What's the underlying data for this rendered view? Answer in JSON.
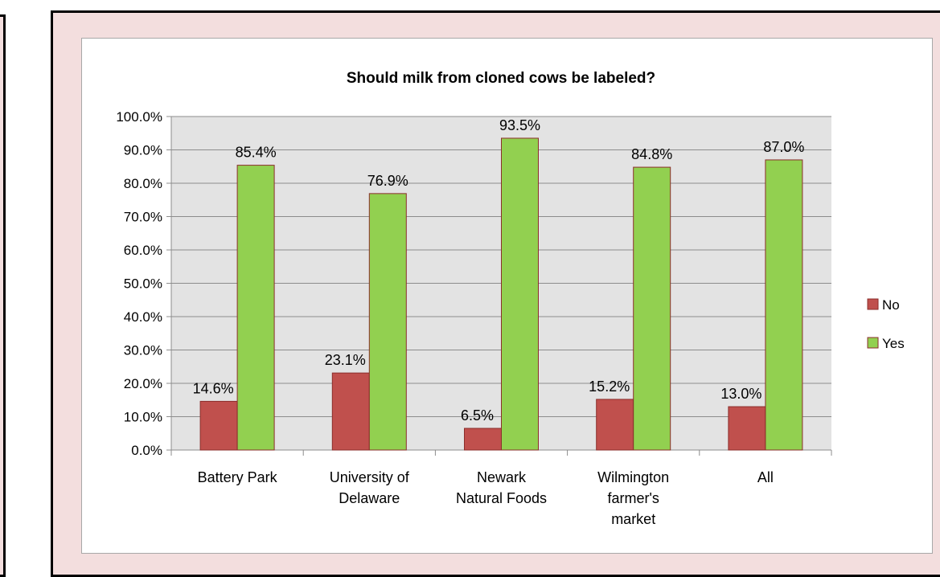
{
  "chart_data": {
    "type": "bar",
    "title": "Should milk from cloned cows be labeled?",
    "categories": [
      [
        "Battery Park"
      ],
      [
        "University of",
        "Delaware"
      ],
      [
        "Newark",
        "Natural Foods"
      ],
      [
        "Wilmington",
        "farmer's",
        "market"
      ],
      [
        "All"
      ]
    ],
    "series": [
      {
        "name": "No",
        "values": [
          14.6,
          23.1,
          6.5,
          15.2,
          13.0
        ],
        "labels": [
          "14.6%",
          "23.1%",
          "6.5%",
          "15.2%",
          "13.0%"
        ],
        "color": "#c0504d"
      },
      {
        "name": "Yes",
        "values": [
          85.4,
          76.9,
          93.5,
          84.8,
          87.0
        ],
        "labels": [
          "85.4%",
          "76.9%",
          "93.5%",
          "84.8%",
          "87.0%"
        ],
        "color": "#92d050"
      }
    ],
    "ylim": [
      0,
      100
    ],
    "yticks": [
      "0.0%",
      "10.0%",
      "20.0%",
      "30.0%",
      "40.0%",
      "50.0%",
      "60.0%",
      "70.0%",
      "80.0%",
      "90.0%",
      "100.0%"
    ],
    "grid": true,
    "legend_position": "right"
  }
}
